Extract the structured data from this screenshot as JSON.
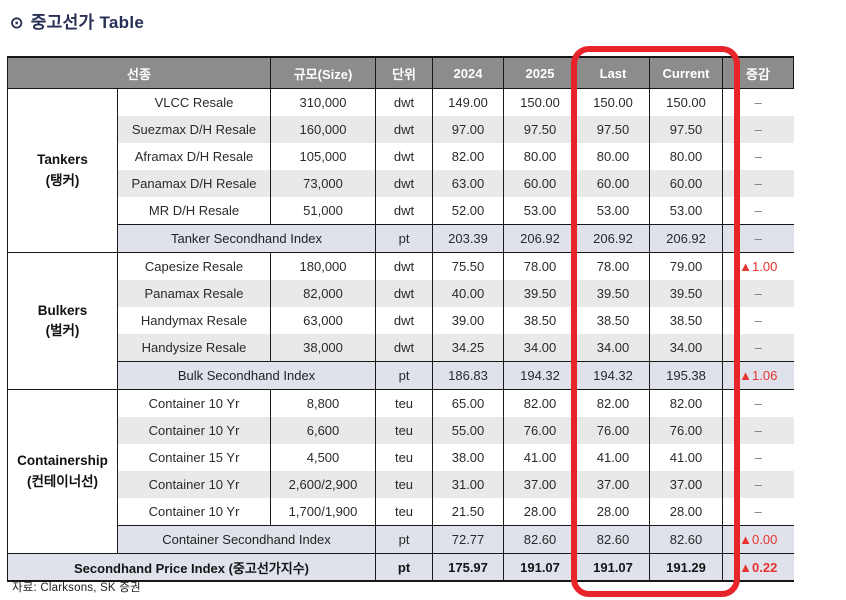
{
  "title": {
    "bullet": "⊙",
    "text": "중고선가 Table"
  },
  "source": "자료: Clarksons, SK 증권",
  "colors": {
    "title_navy": "#272f55",
    "header_bg": "#8c8c8c",
    "header_text": "#ffffff",
    "row_alt_gray": "#e9e9e9",
    "index_row_bg": "#dfe2eb",
    "grid_border": "#171717",
    "change_up_red": "#e8332f",
    "dash_gray": "#777777",
    "highlight_red": "#e8242b"
  },
  "highlight": {
    "shape": "rounded-rectangle",
    "around_columns": [
      "Last",
      "Current"
    ],
    "color": "#e8242b"
  },
  "table": {
    "headers": [
      "선종",
      "규모(Size)",
      "단위",
      "2024",
      "2025",
      "Last",
      "Current",
      "증감"
    ],
    "sections": [
      {
        "name": "Tankers",
        "name_kr": "(탱커)",
        "rows": [
          {
            "type": "VLCC Resale",
            "size": "310,000",
            "unit": "dwt",
            "y2024": "149.00",
            "y2025": "150.00",
            "last": "150.00",
            "current": "150.00",
            "change": "–",
            "up": false
          },
          {
            "type": "Suezmax D/H Resale",
            "size": "160,000",
            "unit": "dwt",
            "y2024": "97.00",
            "y2025": "97.50",
            "last": "97.50",
            "current": "97.50",
            "change": "–",
            "up": false
          },
          {
            "type": "Aframax D/H Resale",
            "size": "105,000",
            "unit": "dwt",
            "y2024": "82.00",
            "y2025": "80.00",
            "last": "80.00",
            "current": "80.00",
            "change": "–",
            "up": false
          },
          {
            "type": "Panamax D/H Resale",
            "size": "73,000",
            "unit": "dwt",
            "y2024": "63.00",
            "y2025": "60.00",
            "last": "60.00",
            "current": "60.00",
            "change": "–",
            "up": false
          },
          {
            "type": "MR D/H Resale",
            "size": "51,000",
            "unit": "dwt",
            "y2024": "52.00",
            "y2025": "53.00",
            "last": "53.00",
            "current": "53.00",
            "change": "–",
            "up": false
          }
        ],
        "index": {
          "label": "Tanker Secondhand Index",
          "unit": "pt",
          "y2024": "203.39",
          "y2025": "206.92",
          "last": "206.92",
          "current": "206.92",
          "change": "–",
          "up": false
        }
      },
      {
        "name": "Bulkers",
        "name_kr": "(벌커)",
        "rows": [
          {
            "type": "Capesize Resale",
            "size": "180,000",
            "unit": "dwt",
            "y2024": "75.50",
            "y2025": "78.00",
            "last": "78.00",
            "current": "79.00",
            "change": "▲1.00",
            "up": true
          },
          {
            "type": "Panamax Resale",
            "size": "82,000",
            "unit": "dwt",
            "y2024": "40.00",
            "y2025": "39.50",
            "last": "39.50",
            "current": "39.50",
            "change": "–",
            "up": false
          },
          {
            "type": "Handymax Resale",
            "size": "63,000",
            "unit": "dwt",
            "y2024": "39.00",
            "y2025": "38.50",
            "last": "38.50",
            "current": "38.50",
            "change": "–",
            "up": false
          },
          {
            "type": "Handysize Resale",
            "size": "38,000",
            "unit": "dwt",
            "y2024": "34.25",
            "y2025": "34.00",
            "last": "34.00",
            "current": "34.00",
            "change": "–",
            "up": false
          }
        ],
        "index": {
          "label": "Bulk Secondhand Index",
          "unit": "pt",
          "y2024": "186.83",
          "y2025": "194.32",
          "last": "194.32",
          "current": "195.38",
          "change": "▲1.06",
          "up": true
        }
      },
      {
        "name": "Containership",
        "name_kr": "(컨테이너선)",
        "rows": [
          {
            "type": "Container 10 Yr",
            "size": "8,800",
            "unit": "teu",
            "y2024": "65.00",
            "y2025": "82.00",
            "last": "82.00",
            "current": "82.00",
            "change": "–",
            "up": false
          },
          {
            "type": "Container 10 Yr",
            "size": "6,600",
            "unit": "teu",
            "y2024": "55.00",
            "y2025": "76.00",
            "last": "76.00",
            "current": "76.00",
            "change": "–",
            "up": false
          },
          {
            "type": "Container 15 Yr",
            "size": "4,500",
            "unit": "teu",
            "y2024": "38.00",
            "y2025": "41.00",
            "last": "41.00",
            "current": "41.00",
            "change": "–",
            "up": false
          },
          {
            "type": "Container 10 Yr",
            "size": "2,600/2,900",
            "unit": "teu",
            "y2024": "31.00",
            "y2025": "37.00",
            "last": "37.00",
            "current": "37.00",
            "change": "–",
            "up": false
          },
          {
            "type": "Container 10 Yr",
            "size": "1,700/1,900",
            "unit": "teu",
            "y2024": "21.50",
            "y2025": "28.00",
            "last": "28.00",
            "current": "28.00",
            "change": "–",
            "up": false
          }
        ],
        "index": {
          "label": "Container Secondhand Index",
          "unit": "pt",
          "y2024": "72.77",
          "y2025": "82.60",
          "last": "82.60",
          "current": "82.60",
          "change": "▲0.00",
          "up": true
        }
      }
    ],
    "total": {
      "label": "Secondhand Price Index (중고선가지수)",
      "unit": "pt",
      "y2024": "175.97",
      "y2025": "191.07",
      "last": "191.07",
      "current": "191.29",
      "change": "▲0.22",
      "up": true
    }
  }
}
